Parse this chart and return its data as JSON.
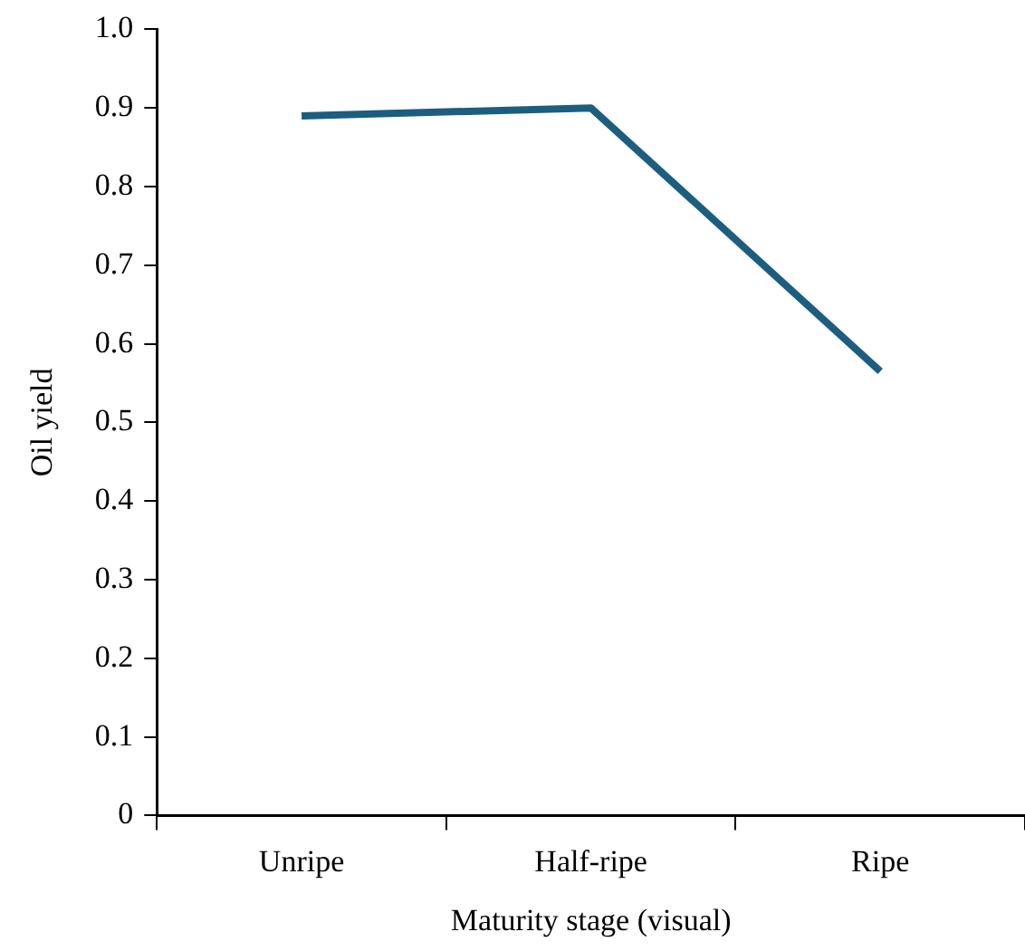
{
  "chart_data": {
    "type": "line",
    "xlabel": "Maturity stage (visual)",
    "ylabel": "Oil yield",
    "categories": [
      "Unripe",
      "Half-ripe",
      "Ripe"
    ],
    "series": [
      {
        "color": "#1b5e80",
        "values": [
          0.89,
          0.9,
          0.565
        ]
      }
    ],
    "ylim": [
      0,
      1
    ],
    "yticks": [
      0,
      {
        "value": 0.1,
        "label": "0.1"
      },
      {
        "value": 0.2,
        "label": "0.2"
      },
      {
        "value": 0.3,
        "label": "0.3"
      },
      {
        "value": 0.4,
        "label": "0.4"
      },
      {
        "value": 0.5,
        "label": "0.5"
      },
      {
        "value": 0.6,
        "label": "0.6"
      },
      {
        "value": 0.7,
        "label": "0.7"
      },
      {
        "value": 0.8,
        "label": "0.8"
      },
      {
        "value": 0.9,
        "label": "0.9"
      },
      {
        "value": 1,
        "label": "1.0"
      }
    ],
    "grid": false,
    "legend": false,
    "marker": "none",
    "line_style": "solid"
  }
}
